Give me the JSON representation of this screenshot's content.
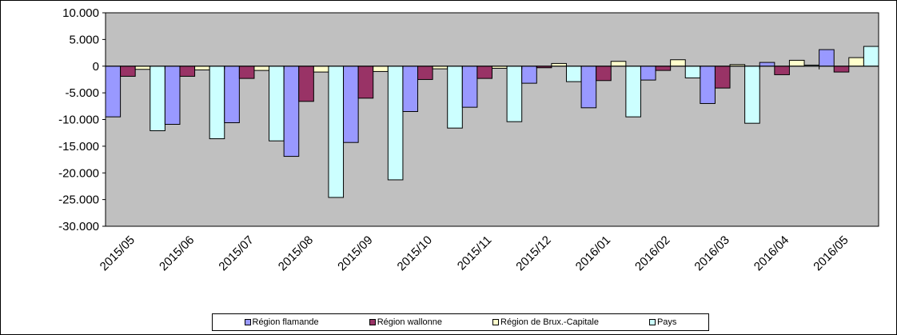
{
  "chart_data": {
    "type": "bar",
    "title": "",
    "xlabel": "",
    "ylabel": "",
    "categories": [
      "2015/05",
      "2015/06",
      "2015/07",
      "2015/08",
      "2015/09",
      "2015/10",
      "2015/11",
      "2015/12",
      "2016/01",
      "2016/02",
      "2016/03",
      "2016/04",
      "2016/05"
    ],
    "yticks": [
      "10.000",
      "5.000",
      "0",
      "-5.000",
      "-10.000",
      "-15.000",
      "-20.000",
      "-25.000",
      "-30.000"
    ],
    "ylim": [
      -30000,
      10000
    ],
    "grid": false,
    "plot_background": "#c0c0c0",
    "legend_position": "bottom",
    "series": [
      {
        "name": "Région flamande",
        "color": "#9999ff",
        "values": [
          -9500,
          -10900,
          -10600,
          -16900,
          -14300,
          -8500,
          -7700,
          -3200,
          -7800,
          -2600,
          -7000,
          700,
          3100
        ]
      },
      {
        "name": "Région wallonne",
        "color": "#993366",
        "values": [
          -1900,
          -1900,
          -2300,
          -6600,
          -6000,
          -2500,
          -2300,
          -300,
          -2700,
          -800,
          -4100,
          -1600,
          -1100
        ]
      },
      {
        "name": "Région de Brux.-Capitale",
        "color": "#ffffcc",
        "values": [
          -600,
          -700,
          -800,
          -1100,
          -1000,
          -500,
          -400,
          500,
          900,
          1200,
          300,
          1100,
          1600
        ]
      },
      {
        "name": "Pays",
        "color": "#ccffff",
        "values": [
          -12100,
          -13600,
          -14000,
          -24600,
          -21300,
          -11600,
          -10400,
          -2900,
          -9500,
          -2200,
          -10700,
          200,
          3700
        ]
      }
    ]
  }
}
